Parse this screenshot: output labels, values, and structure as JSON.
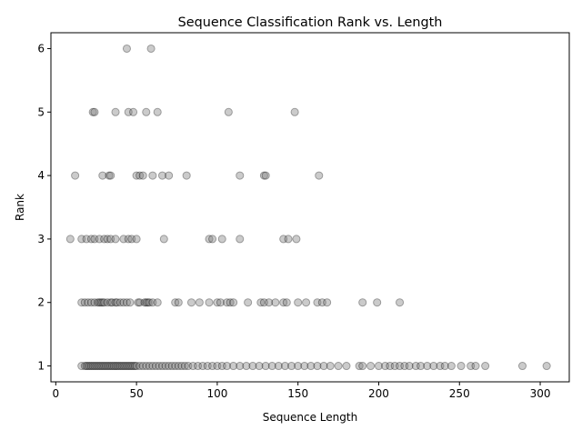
{
  "chart_data": {
    "type": "scatter",
    "title": "Sequence Classification Rank vs. Length",
    "xlabel": "Sequence Length",
    "ylabel": "Rank",
    "xlim": [
      -3,
      318
    ],
    "ylim": [
      0.75,
      6.25
    ],
    "xticks": [
      0,
      50,
      100,
      150,
      200,
      250,
      300
    ],
    "yticks": [
      1,
      2,
      3,
      4,
      5,
      6
    ],
    "grid": false,
    "marker": {
      "color": "#808080",
      "edge_color": "#000000",
      "opacity": 0.4
    },
    "series": [
      {
        "points": [
          [
            44,
            6
          ],
          [
            59,
            6
          ],
          [
            23,
            5
          ],
          [
            24,
            5
          ],
          [
            37,
            5
          ],
          [
            45,
            5
          ],
          [
            48,
            5
          ],
          [
            56,
            5
          ],
          [
            63,
            5
          ],
          [
            107,
            5
          ],
          [
            148,
            5
          ],
          [
            12,
            4
          ],
          [
            29,
            4
          ],
          [
            33,
            4
          ],
          [
            34,
            4
          ],
          [
            50,
            4
          ],
          [
            52,
            4
          ],
          [
            54,
            4
          ],
          [
            60,
            4
          ],
          [
            66,
            4
          ],
          [
            70,
            4
          ],
          [
            81,
            4
          ],
          [
            114,
            4
          ],
          [
            129,
            4
          ],
          [
            130,
            4
          ],
          [
            163,
            4
          ],
          [
            9,
            3
          ],
          [
            16,
            3
          ],
          [
            19,
            3
          ],
          [
            22,
            3
          ],
          [
            24,
            3
          ],
          [
            27,
            3
          ],
          [
            30,
            3
          ],
          [
            32,
            3
          ],
          [
            34,
            3
          ],
          [
            37,
            3
          ],
          [
            42,
            3
          ],
          [
            45,
            3
          ],
          [
            47,
            3
          ],
          [
            50,
            3
          ],
          [
            67,
            3
          ],
          [
            95,
            3
          ],
          [
            97,
            3
          ],
          [
            103,
            3
          ],
          [
            114,
            3
          ],
          [
            141,
            3
          ],
          [
            144,
            3
          ],
          [
            149,
            3
          ],
          [
            16,
            2
          ],
          [
            18,
            2
          ],
          [
            20,
            2
          ],
          [
            22,
            2
          ],
          [
            24,
            2
          ],
          [
            26,
            2
          ],
          [
            27,
            2
          ],
          [
            28,
            2
          ],
          [
            29,
            2
          ],
          [
            30,
            2
          ],
          [
            32,
            2
          ],
          [
            34,
            2
          ],
          [
            35,
            2
          ],
          [
            37,
            2
          ],
          [
            38,
            2
          ],
          [
            40,
            2
          ],
          [
            42,
            2
          ],
          [
            44,
            2
          ],
          [
            46,
            2
          ],
          [
            51,
            2
          ],
          [
            52,
            2
          ],
          [
            55,
            2
          ],
          [
            56,
            2
          ],
          [
            57,
            2
          ],
          [
            58,
            2
          ],
          [
            60,
            2
          ],
          [
            63,
            2
          ],
          [
            74,
            2
          ],
          [
            76,
            2
          ],
          [
            84,
            2
          ],
          [
            89,
            2
          ],
          [
            95,
            2
          ],
          [
            100,
            2
          ],
          [
            102,
            2
          ],
          [
            106,
            2
          ],
          [
            108,
            2
          ],
          [
            110,
            2
          ],
          [
            119,
            2
          ],
          [
            127,
            2
          ],
          [
            129,
            2
          ],
          [
            132,
            2
          ],
          [
            136,
            2
          ],
          [
            141,
            2
          ],
          [
            143,
            2
          ],
          [
            150,
            2
          ],
          [
            155,
            2
          ],
          [
            162,
            2
          ],
          [
            165,
            2
          ],
          [
            168,
            2
          ],
          [
            190,
            2
          ],
          [
            199,
            2
          ],
          [
            213,
            2
          ],
          [
            16,
            1
          ],
          [
            18,
            1
          ],
          [
            19,
            1
          ],
          [
            20,
            1
          ],
          [
            21,
            1
          ],
          [
            22,
            1
          ],
          [
            23,
            1
          ],
          [
            24,
            1
          ],
          [
            25,
            1
          ],
          [
            26,
            1
          ],
          [
            27,
            1
          ],
          [
            28,
            1
          ],
          [
            29,
            1
          ],
          [
            30,
            1
          ],
          [
            31,
            1
          ],
          [
            32,
            1
          ],
          [
            33,
            1
          ],
          [
            34,
            1
          ],
          [
            35,
            1
          ],
          [
            36,
            1
          ],
          [
            37,
            1
          ],
          [
            38,
            1
          ],
          [
            39,
            1
          ],
          [
            40,
            1
          ],
          [
            41,
            1
          ],
          [
            42,
            1
          ],
          [
            43,
            1
          ],
          [
            44,
            1
          ],
          [
            45,
            1
          ],
          [
            46,
            1
          ],
          [
            47,
            1
          ],
          [
            48,
            1
          ],
          [
            49,
            1
          ],
          [
            50,
            1
          ],
          [
            52,
            1
          ],
          [
            54,
            1
          ],
          [
            56,
            1
          ],
          [
            58,
            1
          ],
          [
            60,
            1
          ],
          [
            62,
            1
          ],
          [
            64,
            1
          ],
          [
            66,
            1
          ],
          [
            68,
            1
          ],
          [
            70,
            1
          ],
          [
            72,
            1
          ],
          [
            74,
            1
          ],
          [
            76,
            1
          ],
          [
            78,
            1
          ],
          [
            80,
            1
          ],
          [
            82,
            1
          ],
          [
            85,
            1
          ],
          [
            88,
            1
          ],
          [
            91,
            1
          ],
          [
            94,
            1
          ],
          [
            97,
            1
          ],
          [
            100,
            1
          ],
          [
            103,
            1
          ],
          [
            106,
            1
          ],
          [
            110,
            1
          ],
          [
            114,
            1
          ],
          [
            118,
            1
          ],
          [
            122,
            1
          ],
          [
            126,
            1
          ],
          [
            130,
            1
          ],
          [
            134,
            1
          ],
          [
            138,
            1
          ],
          [
            142,
            1
          ],
          [
            146,
            1
          ],
          [
            150,
            1
          ],
          [
            154,
            1
          ],
          [
            158,
            1
          ],
          [
            162,
            1
          ],
          [
            166,
            1
          ],
          [
            170,
            1
          ],
          [
            175,
            1
          ],
          [
            180,
            1
          ],
          [
            188,
            1
          ],
          [
            190,
            1
          ],
          [
            195,
            1
          ],
          [
            200,
            1
          ],
          [
            204,
            1
          ],
          [
            207,
            1
          ],
          [
            210,
            1
          ],
          [
            213,
            1
          ],
          [
            216,
            1
          ],
          [
            219,
            1
          ],
          [
            223,
            1
          ],
          [
            226,
            1
          ],
          [
            230,
            1
          ],
          [
            234,
            1
          ],
          [
            238,
            1
          ],
          [
            241,
            1
          ],
          [
            245,
            1
          ],
          [
            251,
            1
          ],
          [
            257,
            1
          ],
          [
            260,
            1
          ],
          [
            266,
            1
          ],
          [
            289,
            1
          ],
          [
            304,
            1
          ]
        ]
      }
    ]
  }
}
